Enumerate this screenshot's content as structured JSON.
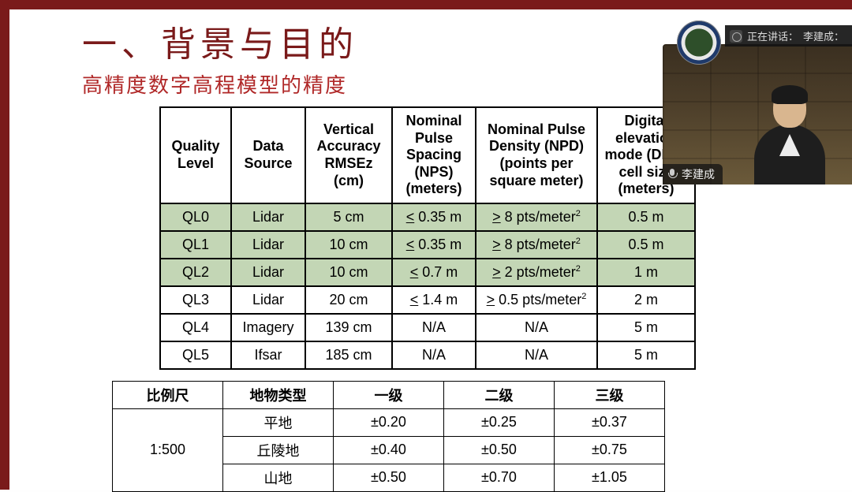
{
  "slide": {
    "title": "一、背景与目的",
    "subtitle": "高精度数字高程模型的精度"
  },
  "colors": {
    "brand": "#7a1a1a",
    "accent": "#b02828",
    "row_highlight": "#c3d6b5",
    "border": "#000000",
    "bg": "#ffffff"
  },
  "table1": {
    "columns": [
      "Quality Level",
      "Data Source",
      "Vertical Accuracy RMSEz (cm)",
      "Nominal Pulse Spacing (NPS) (meters)",
      "Nominal Pulse Density (NPD) (points per square meter)",
      "Digital elevation mode (DEM) cell size (meters)"
    ],
    "rows": [
      {
        "hl": true,
        "cells": [
          "QL0",
          "Lidar",
          "5 cm",
          "≤ 0.35 m",
          "≥ 8 pts/meter²",
          "0.5 m"
        ]
      },
      {
        "hl": true,
        "cells": [
          "QL1",
          "Lidar",
          "10 cm",
          "≤ 0.35 m",
          "≥ 8 pts/meter²",
          "0.5 m"
        ]
      },
      {
        "hl": true,
        "cells": [
          "QL2",
          "Lidar",
          "10 cm",
          "≤ 0.7 m",
          "≥ 2 pts/meter²",
          "1 m"
        ]
      },
      {
        "hl": false,
        "cells": [
          "QL3",
          "Lidar",
          "20 cm",
          "≤ 1.4 m",
          "≥ 0.5 pts/meter²",
          "2 m"
        ]
      },
      {
        "hl": false,
        "cells": [
          "QL4",
          "Imagery",
          "139 cm",
          "N/A",
          "N/A",
          "5 m"
        ]
      },
      {
        "hl": false,
        "cells": [
          "QL5",
          "Ifsar",
          "185 cm",
          "N/A",
          "N/A",
          "5 m"
        ]
      }
    ]
  },
  "table2": {
    "columns": [
      "比例尺",
      "地物类型",
      "一级",
      "二级",
      "三级"
    ],
    "scale": "1:500",
    "rows": [
      {
        "type": "平地",
        "v": [
          "±0.20",
          "±0.25",
          "±0.37"
        ]
      },
      {
        "type": "丘陵地",
        "v": [
          "±0.40",
          "±0.50",
          "±0.75"
        ]
      },
      {
        "type": "山地",
        "v": [
          "±0.50",
          "±0.70",
          "±1.05"
        ]
      }
    ]
  },
  "video_overlay": {
    "speaking_prefix": "正在讲话：",
    "speaker": "李建成：",
    "name_tag": "李建成"
  }
}
